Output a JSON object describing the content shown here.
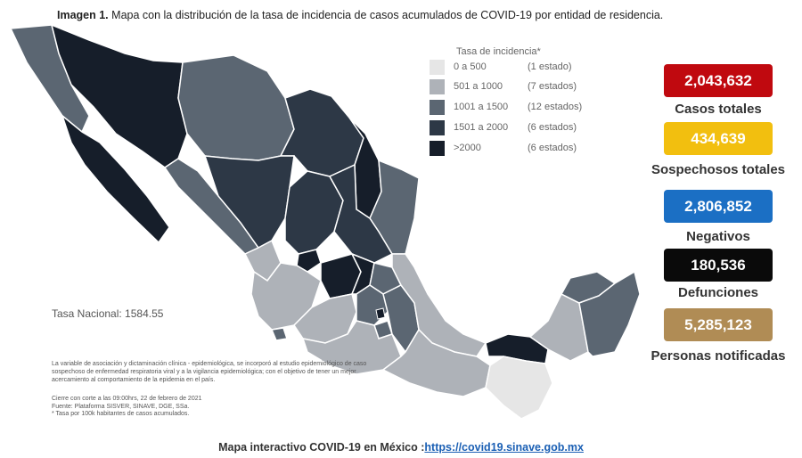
{
  "header": {
    "prefix": "Imagen 1.",
    "caption": "Mapa con la distribución de la tasa de incidencia de casos acumulados de COVID-19 por entidad de residencia."
  },
  "legend": {
    "title": "Tasa de incidencia*",
    "items": [
      {
        "range": "0 a   500",
        "count": "(1 estado)",
        "color": "#e6e6e6"
      },
      {
        "range": "501 a  1000",
        "count": "(7 estados)",
        "color": "#aeb2b8"
      },
      {
        "range": "1001 a  1500",
        "count": "(12 estados)",
        "color": "#5b6672"
      },
      {
        "range": "1501 a  2000",
        "count": "(6 estados)",
        "color": "#2d3846"
      },
      {
        "range": ">2000",
        "count": "(6 estados)",
        "color": "#161e2a"
      }
    ]
  },
  "national_rate": "Tasa Nacional: 1584.55",
  "note": "La variable de asociación y dictaminación clínica - epidemiológica, se incorporó al estudio epidemiológico de caso sospechoso de enfermedad respiratoria viral y a la vigilancia epidemiológica; con el objetivo de tener un mejor acercamiento al comportamiento de la epidemia en el país.",
  "cutoff": "Cierre con corte a las 09:00hrs, 22 de febrero de 2021",
  "source": "Fuente: Plataforma SISVER, SINAVE, DGE, SSa.",
  "rate_note": "* Tasa por 100k habitantes de casos acumulados.",
  "stats": [
    {
      "value": "2,043,632",
      "label": "Casos totales",
      "color": "#c0090f"
    },
    {
      "value": "434,639",
      "label": "Sospechosos totales",
      "color": "#f2bf0f"
    },
    {
      "value": "2,806,852",
      "label": "Negativos",
      "color": "#1b6fc4"
    },
    {
      "value": "180,536",
      "label": "Defunciones",
      "color": "#0a0a0a"
    },
    {
      "value": "5,285,123",
      "label": "Personas notificadas",
      "color": "#b08c55"
    }
  ],
  "footer": {
    "text": "Mapa interactivo COVID-19 en México :",
    "url": "https://covid19.sinave.gob.mx"
  }
}
